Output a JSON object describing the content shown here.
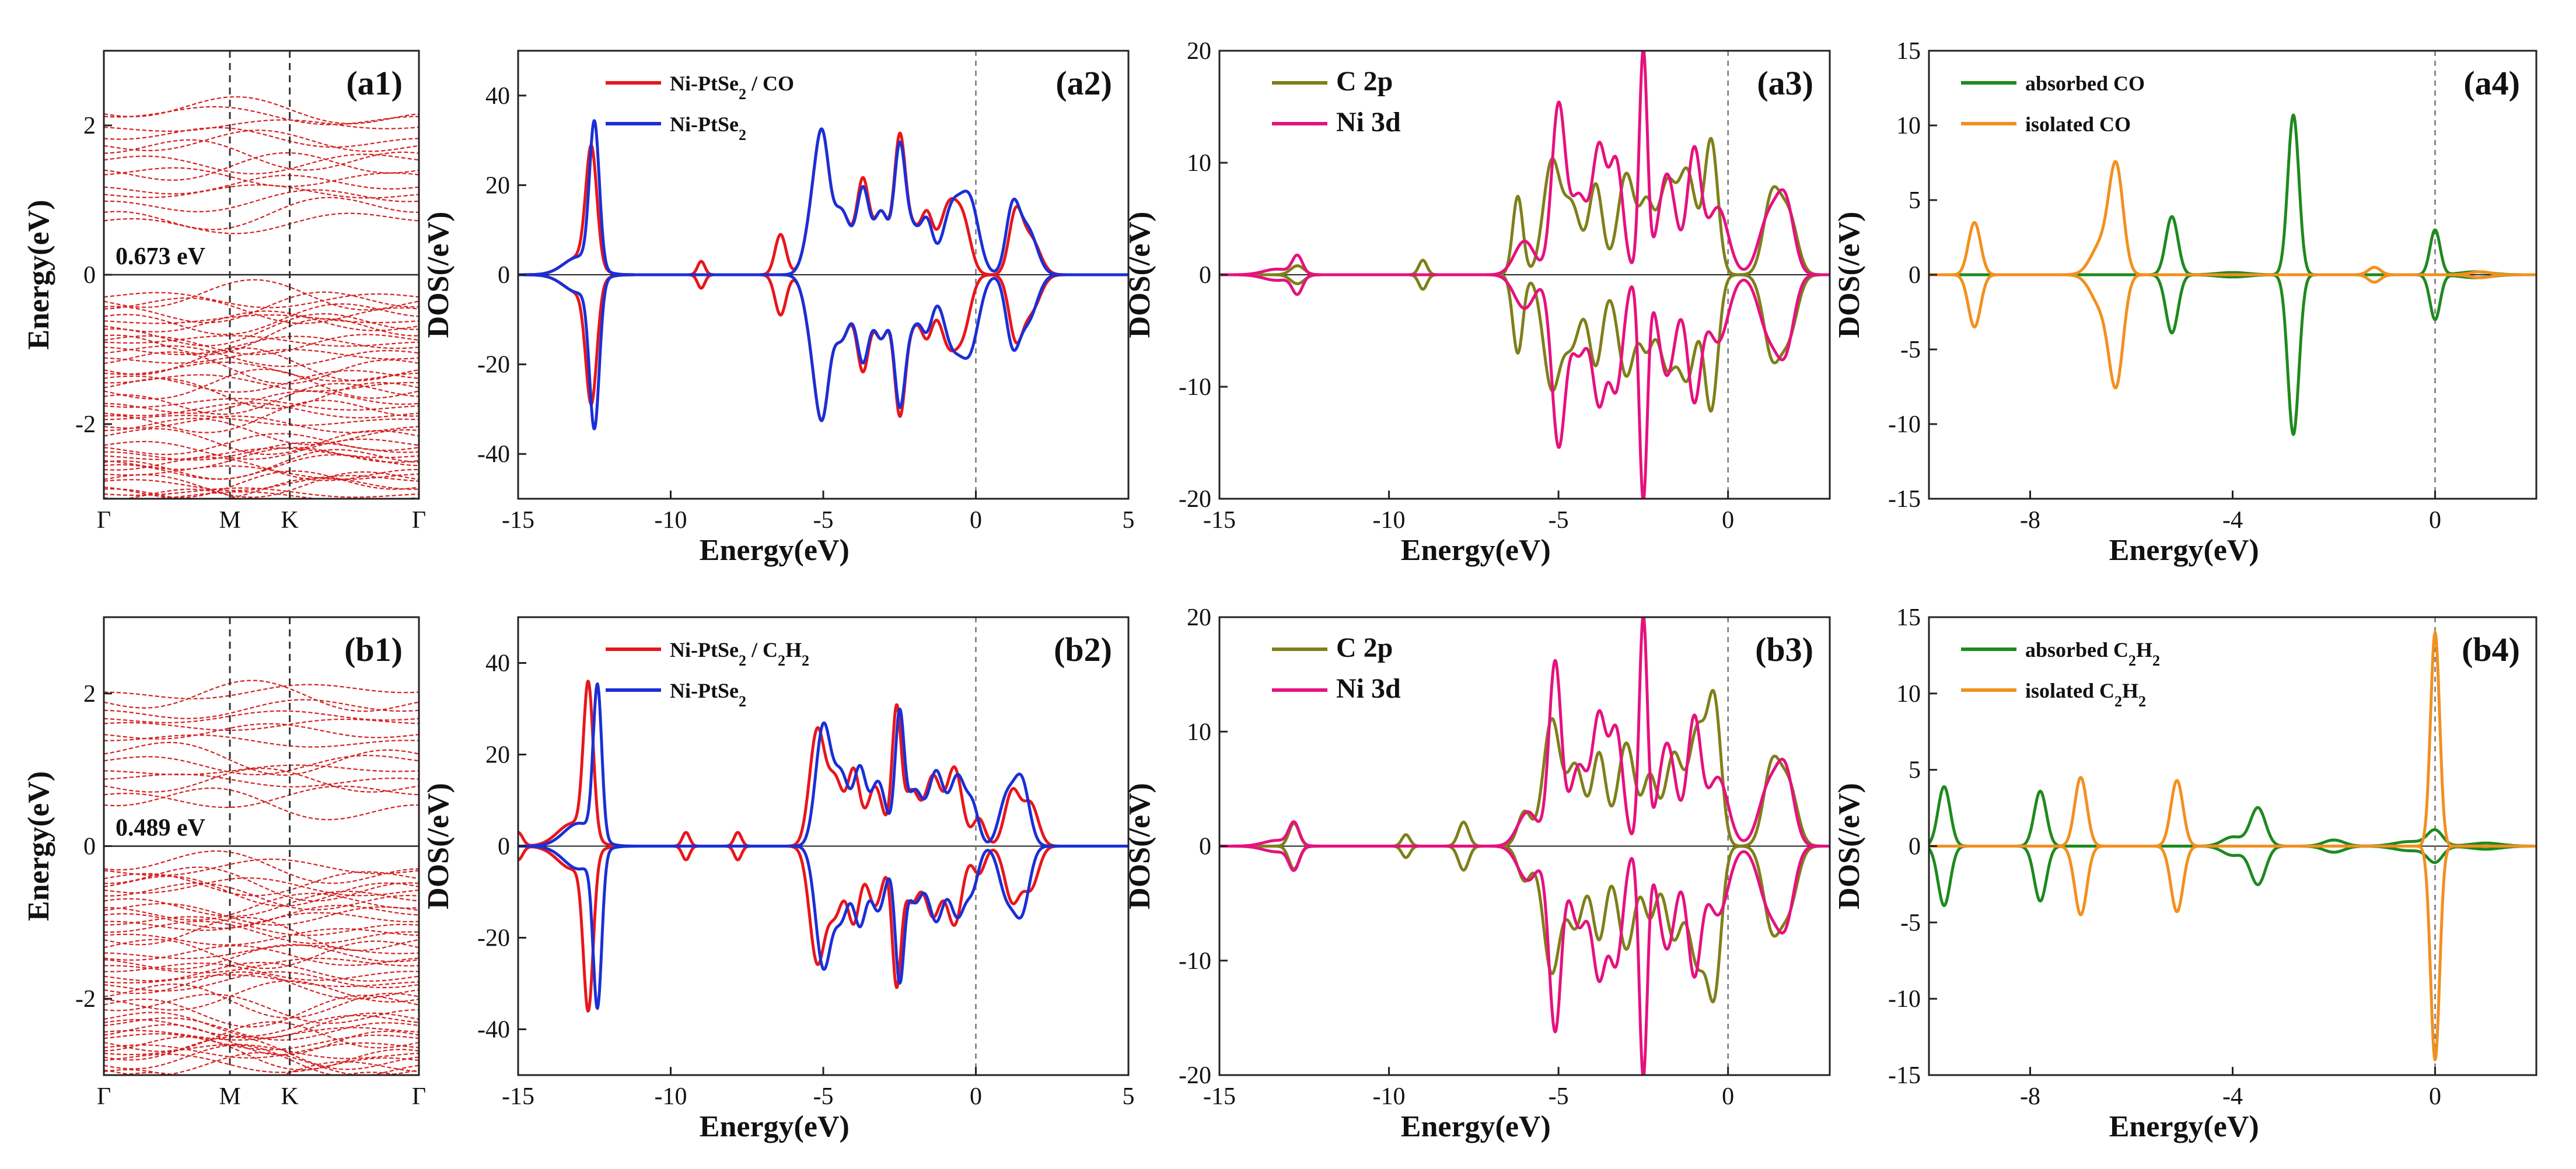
{
  "figure": {
    "description_free": true
  },
  "chart_data": [
    {
      "id": "a1",
      "type": "line",
      "subtype": "band-structure",
      "panel_label": "(a1)",
      "ylabel": "Energy(eV)",
      "ylim": [
        -3,
        3
      ],
      "yticks": [
        -2,
        0,
        2
      ],
      "ytick_labels": [
        "-2",
        "0",
        "2"
      ],
      "kpoints": [
        "Γ",
        "M",
        "K",
        "Γ"
      ],
      "gap_annotation": "0.673 eV",
      "color": "#d62020",
      "conduction_band_min": 0.673,
      "seed": 11
    },
    {
      "id": "a2",
      "type": "line",
      "subtype": "dos-spin",
      "panel_label": "(a2)",
      "xlabel": "Energy(eV)",
      "ylabel": "DOS(/eV)",
      "xlim": [
        -15,
        5
      ],
      "ylim": [
        -50,
        50
      ],
      "xticks": [
        -15,
        -10,
        -5,
        0,
        5
      ],
      "xtick_labels": [
        "-15",
        "-10",
        "-5",
        "0",
        "5"
      ],
      "yticks": [
        -40,
        -20,
        0,
        20,
        40
      ],
      "ytick_labels": [
        "-40",
        "-20",
        "0",
        "20",
        "40"
      ],
      "legend_position": "top-left",
      "series": [
        {
          "name": "Ni-PtSe2 / CO",
          "legend_main": "Ni-PtSe",
          "legend_sub": "2",
          "legend_tail": " / CO",
          "color": "#e8161c",
          "peaks": [
            [
              -12.6,
              26,
              0.18
            ],
            [
              -13.0,
              4,
              0.5
            ],
            [
              -9.0,
              3,
              0.12
            ],
            [
              -6.4,
              9,
              0.18
            ],
            [
              -5.2,
              20,
              0.3
            ],
            [
              -5.0,
              14,
              0.2
            ],
            [
              -4.4,
              14,
              0.3
            ],
            [
              -3.7,
              20,
              0.2
            ],
            [
              -3.1,
              14,
              0.25
            ],
            [
              -2.5,
              28,
              0.18
            ],
            [
              -2.1,
              10,
              0.25
            ],
            [
              -1.6,
              12,
              0.2
            ],
            [
              -0.9,
              15,
              0.3
            ],
            [
              -0.4,
              10,
              0.25
            ],
            [
              1.3,
              13,
              0.22
            ],
            [
              1.8,
              8,
              0.3
            ]
          ]
        },
        {
          "name": "Ni-PtSe2",
          "legend_main": "Ni-PtSe",
          "legend_sub": "2",
          "legend_tail": "",
          "color": "#1b2fd6",
          "peaks": [
            [
              -12.5,
              32,
              0.16
            ],
            [
              -13.0,
              4,
              0.5
            ],
            [
              -5.2,
              20,
              0.3
            ],
            [
              -5.0,
              14,
              0.2
            ],
            [
              -4.4,
              14,
              0.3
            ],
            [
              -3.7,
              18,
              0.2
            ],
            [
              -3.1,
              14,
              0.25
            ],
            [
              -2.5,
              26,
              0.18
            ],
            [
              -2.1,
              10,
              0.25
            ],
            [
              -1.6,
              11,
              0.2
            ],
            [
              -0.8,
              14,
              0.3
            ],
            [
              -0.2,
              16,
              0.3
            ],
            [
              1.2,
              14,
              0.22
            ],
            [
              1.7,
              10,
              0.3
            ]
          ]
        }
      ]
    },
    {
      "id": "a3",
      "type": "line",
      "subtype": "dos-spin",
      "panel_label": "(a3)",
      "xlabel": "Energy(eV)",
      "ylabel": "DOS(/eV)",
      "xlim": [
        -15,
        3
      ],
      "ylim": [
        -20,
        20
      ],
      "xticks": [
        -15,
        -10,
        -5,
        0
      ],
      "xtick_labels": [
        "-15",
        "-10",
        "-5",
        "0"
      ],
      "yticks": [
        -20,
        -10,
        0,
        10,
        20
      ],
      "ytick_labels": [
        "-20",
        "-10",
        "0",
        "10",
        "20"
      ],
      "legend_position": "top-left",
      "series": [
        {
          "name": "C 2p",
          "legend_main": "C   2p",
          "legend_sub": "",
          "legend_tail": "",
          "color": "#7f7f1a",
          "peaks": [
            [
              -12.7,
              0.8,
              0.2
            ],
            [
              -9.0,
              1.3,
              0.12
            ],
            [
              -6.2,
              7,
              0.15
            ],
            [
              -5.2,
              10,
              0.25
            ],
            [
              -4.6,
              6,
              0.25
            ],
            [
              -3.9,
              8,
              0.2
            ],
            [
              -3.0,
              9,
              0.25
            ],
            [
              -2.4,
              6,
              0.2
            ],
            [
              -1.8,
              8,
              0.25
            ],
            [
              -1.2,
              9,
              0.25
            ],
            [
              -0.5,
              12,
              0.2
            ],
            [
              1.3,
              7,
              0.25
            ],
            [
              1.8,
              5,
              0.25
            ]
          ]
        },
        {
          "name": "Ni 3d",
          "legend_main": "Ni  3d",
          "legend_sub": "",
          "legend_tail": "",
          "color": "#e6117f",
          "peaks": [
            [
              -12.7,
              1.6,
              0.15
            ],
            [
              -13.3,
              0.5,
              0.4
            ],
            [
              -6.0,
              3,
              0.3
            ],
            [
              -5.0,
              15,
              0.2
            ],
            [
              -4.4,
              7,
              0.25
            ],
            [
              -3.8,
              11,
              0.2
            ],
            [
              -3.3,
              10,
              0.2
            ],
            [
              -2.5,
              20,
              0.12
            ],
            [
              -1.8,
              9,
              0.25
            ],
            [
              -1.0,
              11,
              0.2
            ],
            [
              -0.3,
              6,
              0.3
            ],
            [
              1.2,
              5,
              0.3
            ],
            [
              1.7,
              6,
              0.25
            ]
          ]
        }
      ]
    },
    {
      "id": "a4",
      "type": "line",
      "subtype": "dos-spin",
      "panel_label": "(a4)",
      "xlabel": "Energy(eV)",
      "ylabel": "DOS(/eV)",
      "xlim": [
        -10,
        2
      ],
      "ylim": [
        -15,
        15
      ],
      "xticks": [
        -8,
        -4,
        0
      ],
      "xtick_labels": [
        "-8",
        "-4",
        "0"
      ],
      "yticks": [
        -15,
        -10,
        -5,
        0,
        5,
        10,
        15
      ],
      "ytick_labels": [
        "-15",
        "-10",
        "-5",
        "0",
        "5",
        "10",
        "15"
      ],
      "legend_position": "top-left",
      "series": [
        {
          "name": "absorbed CO",
          "legend_main": "absorbed CO",
          "legend_sub": "",
          "legend_tail": "",
          "color": "#1e8a1e",
          "peaks": [
            [
              -5.2,
              3.9,
              0.12
            ],
            [
              -2.8,
              10.7,
              0.11
            ],
            [
              0.0,
              3.0,
              0.1
            ],
            [
              -4.0,
              0.15,
              0.3
            ],
            [
              0.8,
              0.2,
              0.3
            ]
          ]
        },
        {
          "name": "isolated CO",
          "legend_main": "isolated CO",
          "legend_sub": "",
          "legend_tail": "",
          "color": "#f2901f",
          "peaks": [
            [
              -9.1,
              3.5,
              0.12
            ],
            [
              -6.3,
              6.9,
              0.14
            ],
            [
              -6.6,
              2.0,
              0.2
            ],
            [
              -1.2,
              0.5,
              0.12
            ],
            [
              0.9,
              0.2,
              0.2
            ]
          ]
        }
      ]
    },
    {
      "id": "b1",
      "type": "line",
      "subtype": "band-structure",
      "panel_label": "(b1)",
      "ylabel": "Energy(eV)",
      "ylim": [
        -3,
        3
      ],
      "yticks": [
        -2,
        0,
        2
      ],
      "ytick_labels": [
        "-2",
        "0",
        "2"
      ],
      "kpoints": [
        "Γ",
        "M",
        "K",
        "Γ"
      ],
      "gap_annotation": "0.489 eV",
      "color": "#d62020",
      "conduction_band_min": 0.489,
      "seed": 29
    },
    {
      "id": "b2",
      "type": "line",
      "subtype": "dos-spin",
      "panel_label": "(b2)",
      "xlabel": "Energy(eV)",
      "ylabel": "DOS(/eV)",
      "xlim": [
        -15,
        5
      ],
      "ylim": [
        -50,
        50
      ],
      "xticks": [
        -15,
        -10,
        -5,
        0,
        5
      ],
      "xtick_labels": [
        "-15",
        "-10",
        "-5",
        "0",
        "5"
      ],
      "yticks": [
        -40,
        -20,
        0,
        20,
        40
      ],
      "ytick_labels": [
        "-40",
        "-20",
        "0",
        "20",
        "40"
      ],
      "legend_position": "top-left",
      "series": [
        {
          "name": "Ni-PtSe2 / C2H2",
          "legend_main": "Ni-PtSe",
          "legend_sub": "2",
          "legend_tail": " / C",
          "legend_tail_sub": "2",
          "legend_tail2": "H",
          "legend_tail2_sub": "2",
          "color": "#e8161c",
          "peaks": [
            [
              -15.0,
              3,
              0.15
            ],
            [
              -12.7,
              33,
              0.16
            ],
            [
              -13.2,
              5,
              0.5
            ],
            [
              -9.5,
              3,
              0.12
            ],
            [
              -7.8,
              3,
              0.12
            ],
            [
              -5.2,
              25,
              0.25
            ],
            [
              -4.6,
              14,
              0.25
            ],
            [
              -4.0,
              16,
              0.2
            ],
            [
              -3.3,
              13,
              0.25
            ],
            [
              -2.6,
              29,
              0.15
            ],
            [
              -2.1,
              12,
              0.25
            ],
            [
              -1.4,
              15,
              0.25
            ],
            [
              -0.7,
              17,
              0.25
            ],
            [
              0.1,
              6,
              0.2
            ],
            [
              1.2,
              12,
              0.25
            ],
            [
              1.8,
              9,
              0.25
            ]
          ]
        },
        {
          "name": "Ni-PtSe2",
          "legend_main": "Ni-PtSe",
          "legend_sub": "2",
          "legend_tail": "",
          "color": "#1b2fd6",
          "peaks": [
            [
              -12.4,
              33,
              0.14
            ],
            [
              -13.0,
              5,
              0.5
            ],
            [
              -5.0,
              26,
              0.25
            ],
            [
              -4.4,
              15,
              0.25
            ],
            [
              -3.8,
              16,
              0.2
            ],
            [
              -3.2,
              14,
              0.25
            ],
            [
              -2.5,
              28,
              0.15
            ],
            [
              -2.0,
              12,
              0.25
            ],
            [
              -1.3,
              16,
              0.25
            ],
            [
              -0.6,
              15,
              0.25
            ],
            [
              -0.1,
              8,
              0.2
            ],
            [
              1.0,
              10,
              0.25
            ],
            [
              1.5,
              14,
              0.25
            ]
          ]
        }
      ]
    },
    {
      "id": "b3",
      "type": "line",
      "subtype": "dos-spin",
      "panel_label": "(b3)",
      "xlabel": "Energy(eV)",
      "ylabel": "DOS(/eV)",
      "xlim": [
        -15,
        3
      ],
      "ylim": [
        -20,
        20
      ],
      "xticks": [
        -15,
        -10,
        -5,
        0
      ],
      "xtick_labels": [
        "-15",
        "-10",
        "-5",
        "0"
      ],
      "yticks": [
        -20,
        -10,
        0,
        10,
        20
      ],
      "ytick_labels": [
        "-20",
        "-10",
        "0",
        "10",
        "20"
      ],
      "legend_position": "top-left",
      "series": [
        {
          "name": "C 2p",
          "legend_main": "C   2p",
          "legend_sub": "",
          "legend_tail": "",
          "color": "#7f7f1a",
          "peaks": [
            [
              -12.8,
              2.0,
              0.15
            ],
            [
              -9.5,
              1.0,
              0.12
            ],
            [
              -7.8,
              2.1,
              0.15
            ],
            [
              -6.0,
              3,
              0.2
            ],
            [
              -5.2,
              11,
              0.25
            ],
            [
              -4.5,
              7,
              0.25
            ],
            [
              -3.8,
              8,
              0.2
            ],
            [
              -3.0,
              9,
              0.25
            ],
            [
              -2.3,
              6,
              0.2
            ],
            [
              -1.6,
              8,
              0.25
            ],
            [
              -0.9,
              10,
              0.25
            ],
            [
              -0.4,
              12,
              0.2
            ],
            [
              1.3,
              7,
              0.25
            ],
            [
              1.8,
              5,
              0.25
            ]
          ]
        },
        {
          "name": "Ni 3d",
          "legend_main": "Ni  3d",
          "legend_sub": "",
          "legend_tail": "",
          "color": "#e6117f",
          "peaks": [
            [
              -12.8,
              1.9,
              0.15
            ],
            [
              -13.3,
              0.5,
              0.4
            ],
            [
              -5.9,
              3,
              0.3
            ],
            [
              -5.1,
              16,
              0.18
            ],
            [
              -4.4,
              7,
              0.25
            ],
            [
              -3.8,
              11,
              0.2
            ],
            [
              -3.3,
              10,
              0.2
            ],
            [
              -2.5,
              20,
              0.12
            ],
            [
              -1.8,
              9,
              0.25
            ],
            [
              -1.0,
              11,
              0.2
            ],
            [
              -0.3,
              6,
              0.3
            ],
            [
              1.2,
              5,
              0.3
            ],
            [
              1.7,
              6,
              0.25
            ]
          ]
        }
      ]
    },
    {
      "id": "b4",
      "type": "line",
      "subtype": "dos-spin",
      "panel_label": "(b4)",
      "xlabel": "Energy(eV)",
      "ylabel": "DOS(/eV)",
      "xlim": [
        -10,
        2
      ],
      "ylim": [
        -15,
        15
      ],
      "xticks": [
        -8,
        -4,
        0
      ],
      "xtick_labels": [
        "-8",
        "-4",
        "0"
      ],
      "yticks": [
        -15,
        -10,
        -5,
        0,
        5,
        10,
        15
      ],
      "ytick_labels": [
        "-15",
        "-10",
        "-5",
        "0",
        "5",
        "10",
        "15"
      ],
      "legend_position": "top-left",
      "series": [
        {
          "name": "absorbed C2H2",
          "legend_main": "absorbed C",
          "legend_sub": "2",
          "legend_tail": "H",
          "legend_tail_sub": "2",
          "color": "#1e8a1e",
          "peaks": [
            [
              -9.7,
              3.9,
              0.12
            ],
            [
              -7.8,
              3.6,
              0.12
            ],
            [
              -4.0,
              0.6,
              0.2
            ],
            [
              -3.5,
              2.5,
              0.15
            ],
            [
              -2.0,
              0.4,
              0.2
            ],
            [
              -0.5,
              0.3,
              0.3
            ],
            [
              0.0,
              1.0,
              0.15
            ],
            [
              1.0,
              0.2,
              0.3
            ]
          ]
        },
        {
          "name": "isolated C2H2",
          "legend_main": "isolated C",
          "legend_sub": "2",
          "legend_tail": "H",
          "legend_tail_sub": "2",
          "color": "#f2901f",
          "peaks": [
            [
              -7.0,
              4.5,
              0.12
            ],
            [
              -5.1,
              4.3,
              0.12
            ],
            [
              0.0,
              14.0,
              0.09
            ]
          ]
        }
      ]
    }
  ]
}
